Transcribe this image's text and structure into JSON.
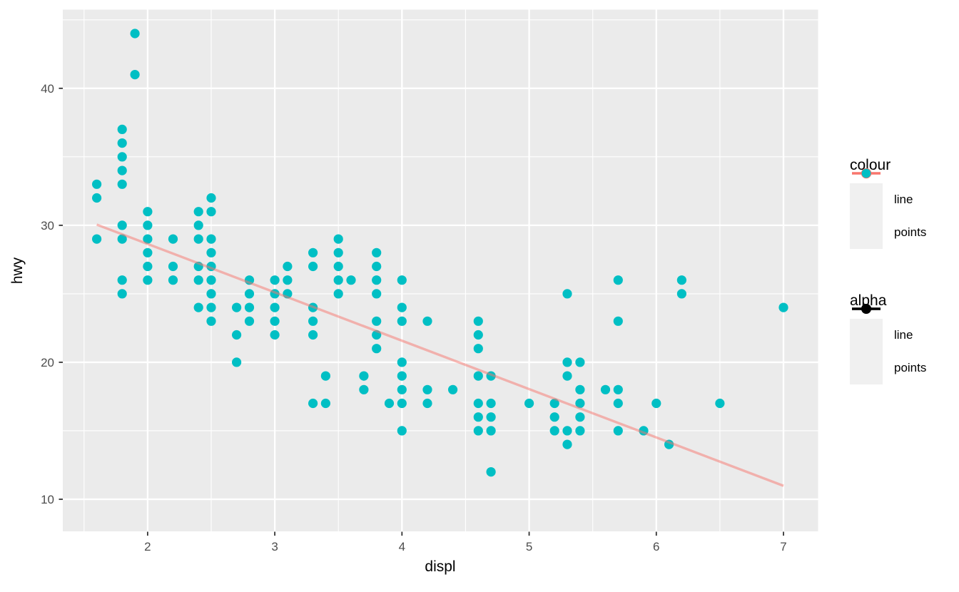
{
  "chart_data": {
    "type": "scatter",
    "title": "",
    "xlabel": "displ",
    "ylabel": "hwy",
    "axes": {
      "xlim": [
        1.333,
        7.272
      ],
      "ylim": [
        7.655,
        45.745
      ],
      "x_ticks": [
        2,
        3,
        4,
        5,
        6,
        7
      ],
      "y_ticks": [
        10,
        20,
        30,
        40
      ],
      "x_minor_ticks": [
        1.5,
        2.5,
        3.5,
        4.5,
        5.5,
        6.5
      ],
      "y_minor_ticks": [
        15,
        25,
        35,
        45
      ],
      "grid": "white major+minor on grey panel"
    },
    "legend_position": "right",
    "series": [
      {
        "name": "points",
        "type": "scatter",
        "color": "#00BFC4",
        "alpha": 1,
        "points": [
          [
            1.6,
            29
          ],
          [
            1.6,
            32
          ],
          [
            1.6,
            33
          ],
          [
            1.8,
            25
          ],
          [
            1.8,
            26
          ],
          [
            1.8,
            29
          ],
          [
            1.8,
            30
          ],
          [
            1.8,
            33
          ],
          [
            1.8,
            34
          ],
          [
            1.8,
            35
          ],
          [
            1.8,
            36
          ],
          [
            1.8,
            37
          ],
          [
            1.9,
            41
          ],
          [
            1.9,
            44
          ],
          [
            2.0,
            26
          ],
          [
            2.0,
            27
          ],
          [
            2.0,
            28
          ],
          [
            2.0,
            29
          ],
          [
            2.0,
            30
          ],
          [
            2.0,
            31
          ],
          [
            2.2,
            26
          ],
          [
            2.2,
            27
          ],
          [
            2.2,
            29
          ],
          [
            2.4,
            24
          ],
          [
            2.4,
            26
          ],
          [
            2.4,
            27
          ],
          [
            2.4,
            29
          ],
          [
            2.4,
            30
          ],
          [
            2.4,
            31
          ],
          [
            2.5,
            23
          ],
          [
            2.5,
            24
          ],
          [
            2.5,
            25
          ],
          [
            2.5,
            26
          ],
          [
            2.5,
            27
          ],
          [
            2.5,
            28
          ],
          [
            2.5,
            29
          ],
          [
            2.5,
            31
          ],
          [
            2.5,
            32
          ],
          [
            2.7,
            20
          ],
          [
            2.7,
            22
          ],
          [
            2.7,
            24
          ],
          [
            2.8,
            23
          ],
          [
            2.8,
            24
          ],
          [
            2.8,
            25
          ],
          [
            2.8,
            26
          ],
          [
            3.0,
            22
          ],
          [
            3.0,
            23
          ],
          [
            3.0,
            24
          ],
          [
            3.0,
            25
          ],
          [
            3.0,
            26
          ],
          [
            3.1,
            25
          ],
          [
            3.1,
            26
          ],
          [
            3.1,
            27
          ],
          [
            3.3,
            17
          ],
          [
            3.3,
            22
          ],
          [
            3.3,
            23
          ],
          [
            3.3,
            24
          ],
          [
            3.3,
            27
          ],
          [
            3.3,
            28
          ],
          [
            3.4,
            17
          ],
          [
            3.4,
            19
          ],
          [
            3.5,
            25
          ],
          [
            3.5,
            26
          ],
          [
            3.5,
            27
          ],
          [
            3.5,
            28
          ],
          [
            3.5,
            29
          ],
          [
            3.6,
            26
          ],
          [
            3.7,
            18
          ],
          [
            3.7,
            19
          ],
          [
            3.8,
            21
          ],
          [
            3.8,
            22
          ],
          [
            3.8,
            23
          ],
          [
            3.8,
            25
          ],
          [
            3.8,
            26
          ],
          [
            3.8,
            27
          ],
          [
            3.8,
            28
          ],
          [
            3.9,
            17
          ],
          [
            4.0,
            15
          ],
          [
            4.0,
            17
          ],
          [
            4.0,
            18
          ],
          [
            4.0,
            19
          ],
          [
            4.0,
            20
          ],
          [
            4.0,
            23
          ],
          [
            4.0,
            24
          ],
          [
            4.0,
            26
          ],
          [
            4.2,
            17
          ],
          [
            4.2,
            18
          ],
          [
            4.2,
            23
          ],
          [
            4.4,
            18
          ],
          [
            4.6,
            15
          ],
          [
            4.6,
            16
          ],
          [
            4.6,
            17
          ],
          [
            4.6,
            19
          ],
          [
            4.6,
            21
          ],
          [
            4.6,
            22
          ],
          [
            4.6,
            23
          ],
          [
            4.7,
            12
          ],
          [
            4.7,
            15
          ],
          [
            4.7,
            16
          ],
          [
            4.7,
            17
          ],
          [
            4.7,
            19
          ],
          [
            5.0,
            17
          ],
          [
            5.2,
            15
          ],
          [
            5.2,
            16
          ],
          [
            5.2,
            17
          ],
          [
            5.3,
            14
          ],
          [
            5.3,
            15
          ],
          [
            5.3,
            19
          ],
          [
            5.3,
            20
          ],
          [
            5.3,
            25
          ],
          [
            5.4,
            15
          ],
          [
            5.4,
            16
          ],
          [
            5.4,
            17
          ],
          [
            5.4,
            18
          ],
          [
            5.4,
            20
          ],
          [
            5.6,
            18
          ],
          [
            5.7,
            15
          ],
          [
            5.7,
            17
          ],
          [
            5.7,
            18
          ],
          [
            5.7,
            23
          ],
          [
            5.7,
            26
          ],
          [
            5.9,
            15
          ],
          [
            6.0,
            17
          ],
          [
            6.1,
            14
          ],
          [
            6.2,
            25
          ],
          [
            6.2,
            26
          ],
          [
            6.5,
            17
          ],
          [
            7.0,
            24
          ]
        ]
      },
      {
        "name": "line",
        "type": "line",
        "color": "#F8766D",
        "alpha": 0.5,
        "model": "hwy = 35.70 - 3.53 * displ",
        "points": [
          [
            1.6,
            30.05
          ],
          [
            7.0,
            10.98
          ]
        ]
      }
    ],
    "legends": [
      {
        "title": "colour",
        "entries": [
          {
            "label": "line",
            "glyph": "line-point",
            "color": "#F8766D",
            "alpha": 1
          },
          {
            "label": "points",
            "glyph": "point",
            "color": "#00BFC4",
            "alpha": 1
          }
        ]
      },
      {
        "title": "alpha",
        "entries": [
          {
            "label": "line",
            "glyph": "line-point",
            "color": "#000000",
            "alpha": 0.5
          },
          {
            "label": "points",
            "glyph": "line-point",
            "color": "#000000",
            "alpha": 1
          }
        ]
      }
    ]
  },
  "style": {
    "panel_bg": "#EBEBEB",
    "grid_color": "#FFFFFF",
    "tick_label_color": "#4D4D4D",
    "tick_mark_color": "#333333",
    "axis_title_color": "#000000",
    "legend_key_bg": "#F0F0F0",
    "point_radius": 6.6,
    "line_width": 3.4
  }
}
